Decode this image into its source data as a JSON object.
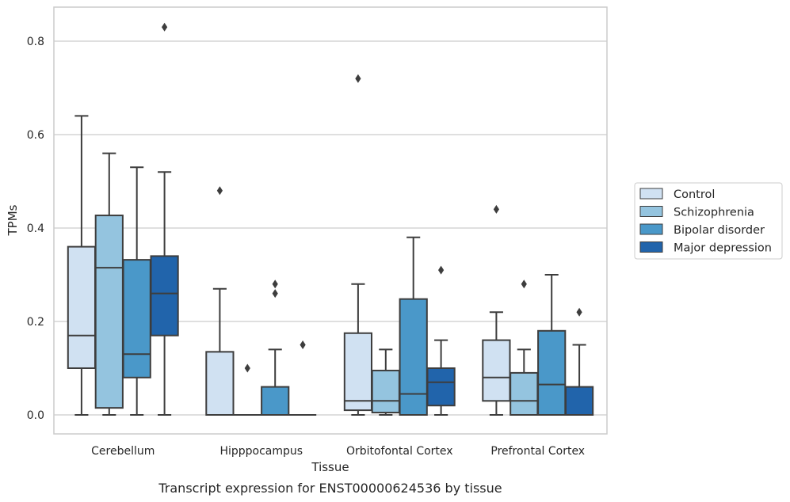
{
  "chart_data": {
    "type": "box",
    "title": "",
    "caption": "Transcript expression for ENST00000624536 by tissue",
    "xlabel": "Tissue",
    "ylabel": "TPMs",
    "ylim": [
      -0.04,
      0.875
    ],
    "yticks": [
      "0.0",
      "0.2",
      "0.4",
      "0.6",
      "0.8"
    ],
    "ytick_values": [
      0.0,
      0.2,
      0.4,
      0.6,
      0.8
    ],
    "grid": "horizontal",
    "legend_position": "right",
    "categories": [
      "Cerebellum",
      "Hipppocampus",
      "Orbitofontal Cortex",
      "Prefrontal Cortex"
    ],
    "series": [
      {
        "name": "Control",
        "color": "#d0e1f2",
        "boxes": [
          {
            "whisker_low": 0.0,
            "q1": 0.1,
            "median": 0.17,
            "q3": 0.36,
            "whisker_high": 0.64,
            "outliers": []
          },
          {
            "whisker_low": 0.0,
            "q1": 0.0,
            "median": 0.0,
            "q3": 0.135,
            "whisker_high": 0.27,
            "outliers": [
              0.48
            ]
          },
          {
            "whisker_low": 0.0,
            "q1": 0.01,
            "median": 0.03,
            "q3": 0.175,
            "whisker_high": 0.28,
            "outliers": [
              0.72
            ]
          },
          {
            "whisker_low": 0.0,
            "q1": 0.03,
            "median": 0.08,
            "q3": 0.16,
            "whisker_high": 0.22,
            "outliers": [
              0.44
            ]
          }
        ]
      },
      {
        "name": "Schizophrenia",
        "color": "#94c4df",
        "boxes": [
          {
            "whisker_low": 0.0,
            "q1": 0.015,
            "median": 0.315,
            "q3": 0.427,
            "whisker_high": 0.56,
            "outliers": []
          },
          {
            "whisker_low": 0.0,
            "q1": 0.0,
            "median": 0.0,
            "q3": 0.0,
            "whisker_high": 0.0,
            "outliers": [
              0.1
            ]
          },
          {
            "whisker_low": 0.0,
            "q1": 0.005,
            "median": 0.03,
            "q3": 0.095,
            "whisker_high": 0.14,
            "outliers": []
          },
          {
            "whisker_low": 0.0,
            "q1": 0.0,
            "median": 0.03,
            "q3": 0.09,
            "whisker_high": 0.14,
            "outliers": [
              0.28
            ]
          }
        ]
      },
      {
        "name": "Bipolar disorder",
        "color": "#4a98c9",
        "boxes": [
          {
            "whisker_low": 0.0,
            "q1": 0.08,
            "median": 0.13,
            "q3": 0.332,
            "whisker_high": 0.53,
            "outliers": []
          },
          {
            "whisker_low": 0.0,
            "q1": 0.0,
            "median": 0.0,
            "q3": 0.06,
            "whisker_high": 0.14,
            "outliers": [
              0.26,
              0.28
            ]
          },
          {
            "whisker_low": 0.0,
            "q1": 0.0,
            "median": 0.045,
            "q3": 0.248,
            "whisker_high": 0.38,
            "outliers": []
          },
          {
            "whisker_low": 0.0,
            "q1": 0.0,
            "median": 0.065,
            "q3": 0.18,
            "whisker_high": 0.3,
            "outliers": []
          }
        ]
      },
      {
        "name": "Major depression",
        "color": "#2164ab",
        "boxes": [
          {
            "whisker_low": 0.0,
            "q1": 0.17,
            "median": 0.26,
            "q3": 0.34,
            "whisker_high": 0.52,
            "outliers": [
              0.83
            ]
          },
          {
            "whisker_low": 0.0,
            "q1": 0.0,
            "median": 0.0,
            "q3": 0.0,
            "whisker_high": 0.0,
            "outliers": [
              0.15
            ]
          },
          {
            "whisker_low": 0.0,
            "q1": 0.02,
            "median": 0.07,
            "q3": 0.1,
            "whisker_high": 0.16,
            "outliers": [
              0.31
            ]
          },
          {
            "whisker_low": 0.0,
            "q1": 0.0,
            "median": 0.0,
            "q3": 0.06,
            "whisker_high": 0.15,
            "outliers": [
              0.22
            ]
          }
        ]
      }
    ]
  },
  "colors": {
    "grid": "#cccccc",
    "frame": "#cccccc",
    "line": "#3d3d3d",
    "text": "#262626"
  }
}
